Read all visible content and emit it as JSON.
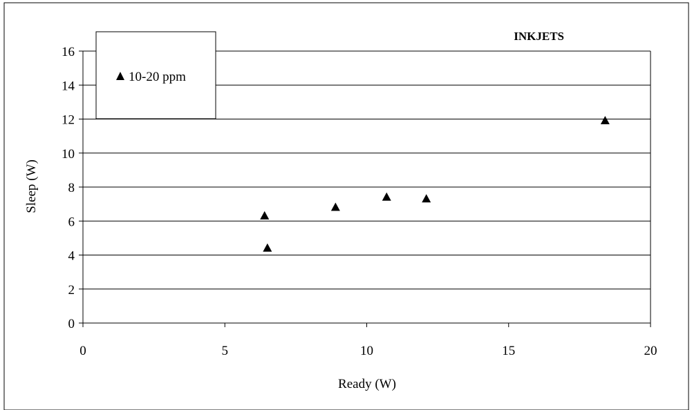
{
  "chart_data": {
    "type": "scatter",
    "title": "INKJETS",
    "xlabel": "Ready (W)",
    "ylabel": "Sleep (W)",
    "xlim": [
      0,
      20
    ],
    "ylim": [
      0,
      16
    ],
    "xticks": [
      0,
      5,
      10,
      15,
      20
    ],
    "yticks": [
      0,
      2,
      4,
      6,
      8,
      10,
      12,
      14,
      16
    ],
    "grid": "horizontal",
    "legend_position": "top-left",
    "series": [
      {
        "name": "10-20 ppm",
        "marker": "triangle",
        "color": "#000000",
        "points": [
          {
            "x": 6.4,
            "y": 6.3
          },
          {
            "x": 6.5,
            "y": 4.4
          },
          {
            "x": 8.9,
            "y": 6.8
          },
          {
            "x": 10.7,
            "y": 7.4
          },
          {
            "x": 12.1,
            "y": 7.3
          },
          {
            "x": 18.4,
            "y": 11.9
          }
        ]
      }
    ]
  }
}
